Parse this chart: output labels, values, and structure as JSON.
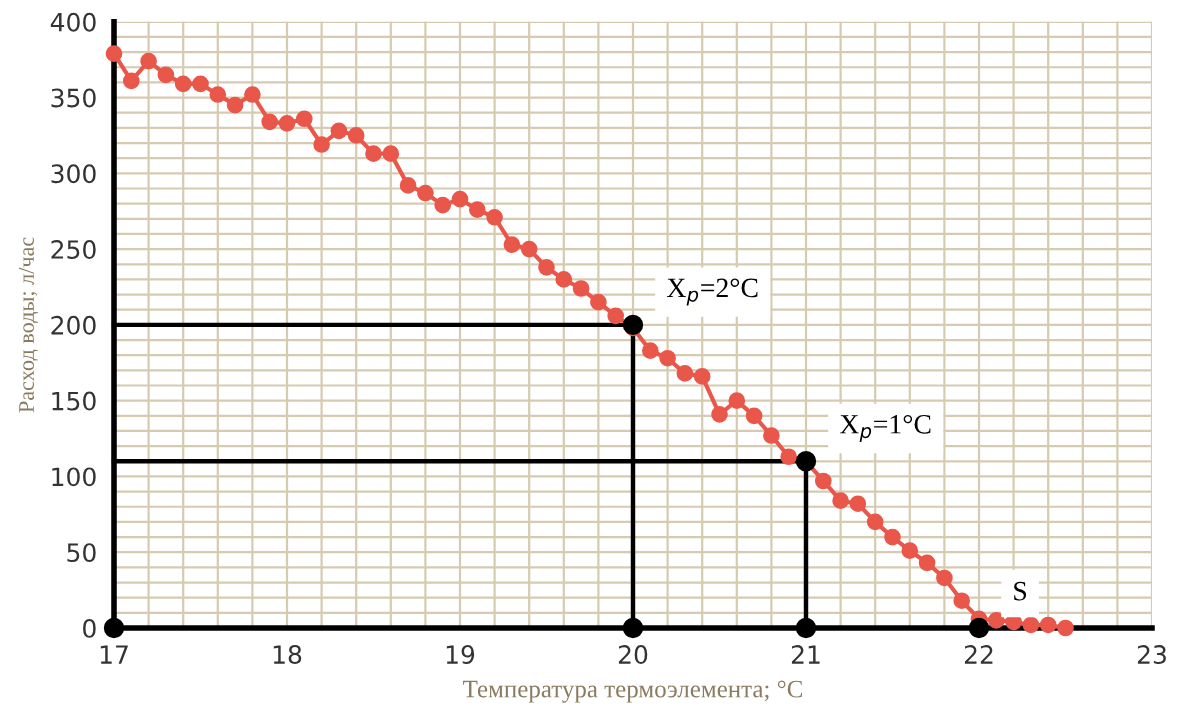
{
  "chart_data": {
    "type": "line",
    "xlabel": "Температура термоэлемента; °C",
    "ylabel": "Расход воды; л/час",
    "xlim": [
      17,
      23
    ],
    "ylim": [
      0,
      400
    ],
    "xticks": [
      17,
      {
        "value": 17.2,
        "label": null
      },
      {
        "value": 17.4,
        "label": null
      },
      {
        "value": 17.6,
        "label": null
      },
      {
        "value": 17.8,
        "label": null
      },
      18,
      {
        "value": 18.2,
        "label": null
      },
      {
        "value": 18.4,
        "label": null
      },
      {
        "value": 18.6,
        "label": null
      },
      {
        "value": 18.8,
        "label": null
      },
      19,
      {
        "value": 19.2,
        "label": null
      },
      {
        "value": 19.4,
        "label": null
      },
      {
        "value": 19.6,
        "label": null
      },
      {
        "value": 19.8,
        "label": null
      },
      20,
      {
        "value": 20.2,
        "label": null
      },
      {
        "value": 20.4,
        "label": null
      },
      {
        "value": 20.6,
        "label": null
      },
      {
        "value": 20.8,
        "label": null
      },
      21,
      {
        "value": 21.2,
        "label": null
      },
      {
        "value": 21.4,
        "label": null
      },
      {
        "value": 21.6,
        "label": null
      },
      {
        "value": 21.8,
        "label": null
      },
      22,
      {
        "value": 22.2,
        "label": null
      },
      {
        "value": 22.4,
        "label": null
      },
      {
        "value": 22.6,
        "label": null
      },
      {
        "value": 22.8,
        "label": null
      },
      23
    ],
    "yticks": [
      0,
      {
        "value": 10,
        "label": null
      },
      {
        "value": 20,
        "label": null
      },
      {
        "value": 30,
        "label": null
      },
      {
        "value": 40,
        "label": null
      },
      50,
      {
        "value": 60,
        "label": null
      },
      {
        "value": 70,
        "label": null
      },
      {
        "value": 80,
        "label": null
      },
      {
        "value": 90,
        "label": null
      },
      100,
      {
        "value": 110,
        "label": null
      },
      {
        "value": 120,
        "label": null
      },
      {
        "value": 130,
        "label": null
      },
      {
        "value": 140,
        "label": null
      },
      150,
      {
        "value": 160,
        "label": null
      },
      {
        "value": 170,
        "label": null
      },
      {
        "value": 180,
        "label": null
      },
      {
        "value": 190,
        "label": null
      },
      200,
      {
        "value": 210,
        "label": null
      },
      {
        "value": 220,
        "label": null
      },
      {
        "value": 230,
        "label": null
      },
      {
        "value": 240,
        "label": null
      },
      250,
      {
        "value": 260,
        "label": null
      },
      {
        "value": 270,
        "label": null
      },
      {
        "value": 280,
        "label": null
      },
      {
        "value": 290,
        "label": null
      },
      300,
      {
        "value": 310,
        "label": null
      },
      {
        "value": 320,
        "label": null
      },
      {
        "value": 330,
        "label": null
      },
      {
        "value": 340,
        "label": null
      },
      350,
      {
        "value": 360,
        "label": null
      },
      {
        "value": 370,
        "label": null
      },
      {
        "value": 380,
        "label": null
      },
      {
        "value": 390,
        "label": null
      },
      400
    ],
    "grid": true,
    "legend": false,
    "series": [
      {
        "color": "#e8574a",
        "marker": "circle",
        "x": [
          17.0,
          17.1,
          17.2,
          17.3,
          17.4,
          17.5,
          17.6,
          17.7,
          17.8,
          17.9,
          18.0,
          18.1,
          18.2,
          18.3,
          18.4,
          18.5,
          18.6,
          18.7,
          18.8,
          18.9,
          19.0,
          19.1,
          19.2,
          19.3,
          19.4,
          19.5,
          19.6,
          19.7,
          19.8,
          19.9,
          20.0,
          20.1,
          20.2,
          20.3,
          20.4,
          20.5,
          20.6,
          20.7,
          20.8,
          20.9,
          21.0,
          21.1,
          21.2,
          21.3,
          21.4,
          21.5,
          21.6,
          21.7,
          21.8,
          21.9,
          22.0,
          22.1,
          22.2,
          22.3,
          22.4,
          22.5
        ],
        "values": [
          379,
          361,
          374,
          365,
          359,
          359,
          352,
          345,
          352,
          334,
          333,
          336,
          319,
          328,
          325,
          313,
          313,
          292,
          287,
          279,
          283,
          276,
          271,
          253,
          250,
          238,
          230,
          224,
          215,
          206,
          198,
          183,
          178,
          168,
          166,
          141,
          150,
          140,
          127,
          113,
          110,
          97,
          84,
          82,
          70,
          60,
          51,
          43,
          33,
          18,
          6,
          5,
          4,
          2,
          2,
          0
        ]
      },
      {
        "color": "#000000",
        "marker": "none",
        "x": [
          17,
          20,
          20
        ],
        "values": [
          200,
          200,
          0
        ]
      },
      {
        "color": "#000000",
        "marker": "none",
        "x": [
          17,
          21,
          21
        ],
        "values": [
          110,
          110,
          0
        ]
      },
      {
        "type": "scatter",
        "color": "#000000",
        "marker": "circle",
        "x": [
          17,
          20,
          21,
          22,
          20,
          21
        ],
        "values": [
          0,
          0,
          0,
          0,
          200,
          110
        ]
      }
    ],
    "annotations": [
      {
        "text": "X$_{р}$=2°C",
        "x": 20,
        "y": 200
      },
      {
        "text": "X$_{р}$=1°C",
        "x": 21,
        "y": 110
      },
      {
        "text": "S",
        "x": 22,
        "y": 0
      }
    ]
  }
}
